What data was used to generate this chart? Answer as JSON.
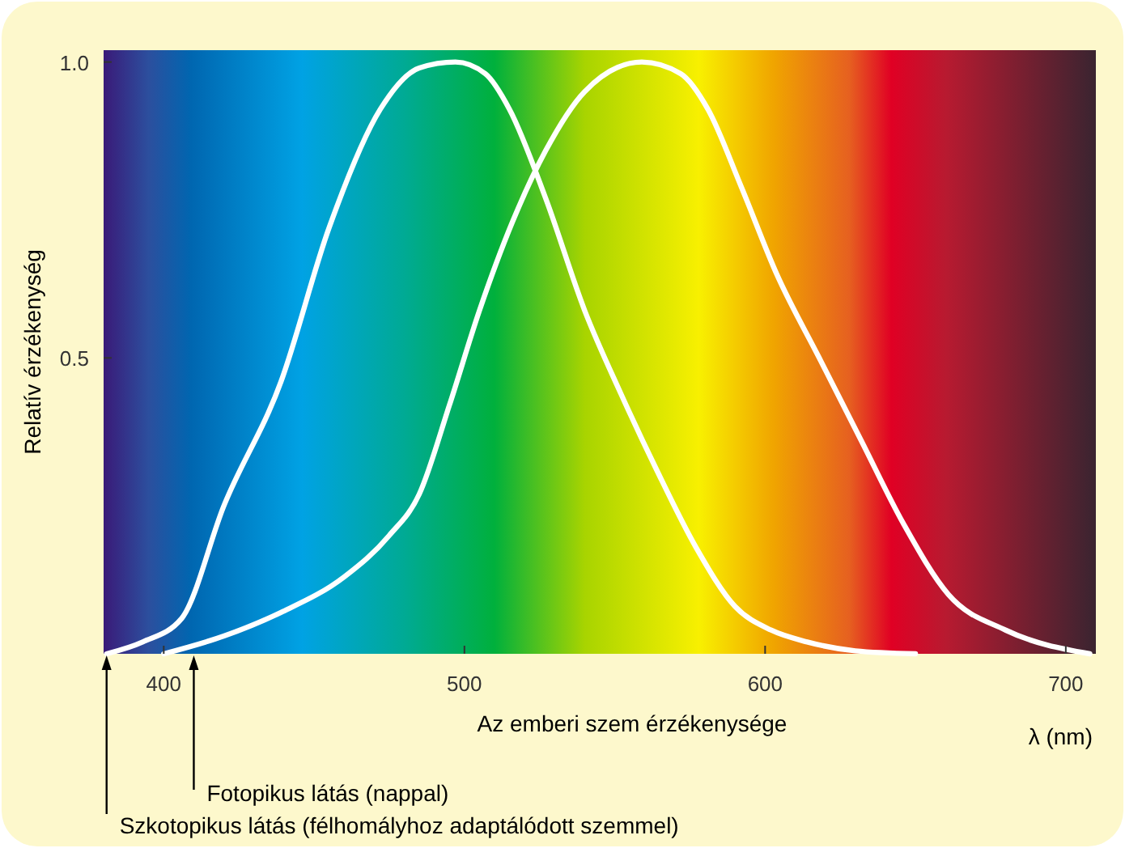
{
  "chart_data": {
    "type": "line",
    "xlabel": "λ (nm)",
    "ylabel": "Relatív érzékenység",
    "xlim": [
      380,
      710
    ],
    "xticks": [
      400,
      500,
      600,
      700
    ],
    "ylim": [
      0,
      1.02
    ],
    "yticks": [
      {
        "value": 0.5,
        "label": "0.5"
      },
      {
        "value": 1,
        "label": "1.0"
      }
    ],
    "grid": false,
    "marker": "none",
    "line_style": "solid",
    "series": [
      {
        "color": "#ffffff",
        "x": [
          381,
          393,
          406,
          420,
          439,
          455,
          472,
          485,
          497,
          507,
          515,
          527,
          540,
          552,
          564,
          577,
          590,
          602,
          614,
          630,
          650
        ],
        "values": [
          0,
          0.02,
          0.06,
          0.25,
          0.46,
          0.72,
          0.92,
          0.99,
          1.0,
          0.98,
          0.92,
          0.77,
          0.58,
          0.44,
          0.31,
          0.18,
          0.08,
          0.04,
          0.02,
          0.005,
          0
        ]
      },
      {
        "color": "#ffffff",
        "x": [
          400,
          420,
          439,
          460,
          475,
          485,
          495,
          505,
          516,
          527,
          540,
          559,
          572,
          581,
          592,
          604,
          618,
          632,
          646,
          661,
          680,
          708
        ],
        "values": [
          0,
          0.03,
          0.07,
          0.13,
          0.2,
          0.27,
          0.42,
          0.58,
          0.73,
          0.85,
          0.95,
          1.0,
          0.98,
          0.92,
          0.79,
          0.64,
          0.5,
          0.36,
          0.22,
          0.1,
          0.04,
          0
        ]
      }
    ],
    "annotations": [
      "Az emberi szem érzékenysége",
      {
        "text": "Fotopikus látás (nappal)",
        "x": 410,
        "y": 0
      },
      {
        "text": "Szkotopikus látás (félhomályhoz adaptálódott szemmel)",
        "x": 381,
        "y": 0
      }
    ]
  }
}
